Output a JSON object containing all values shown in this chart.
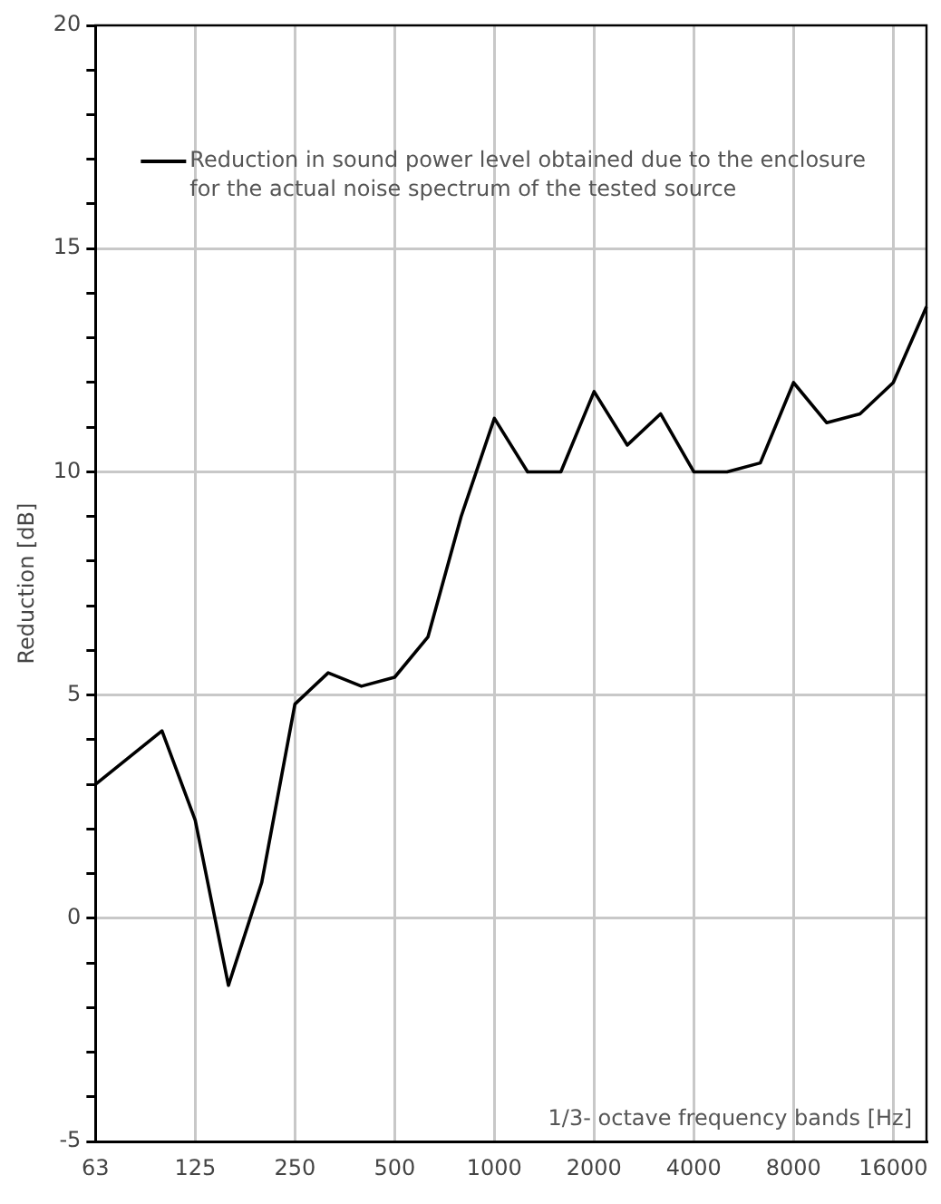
{
  "chart_data": {
    "type": "line",
    "xlabel": "1/3- octave frequency bands [Hz]",
    "ylabel": "Reduction [dB]",
    "categories": [
      "63",
      null,
      null,
      "125",
      null,
      null,
      "250",
      null,
      null,
      "500",
      null,
      null,
      "1000",
      null,
      null,
      "2000",
      null,
      null,
      "4000",
      null,
      null,
      "8000",
      null,
      null,
      "16000",
      null
    ],
    "series": [
      {
        "name": "Reduction in sound power level obtained due to the enclosure for the actual noise spectrum of the tested source",
        "color": "#000000",
        "values": [
          3.0,
          3.6,
          4.2,
          2.2,
          -1.5,
          0.8,
          4.8,
          5.5,
          5.2,
          5.4,
          6.3,
          9.0,
          11.2,
          10.0,
          10.0,
          11.8,
          10.6,
          11.3,
          10.0,
          10.0,
          10.2,
          12.0,
          11.1,
          11.3,
          12.0,
          13.7
        ]
      }
    ],
    "ylim": [
      -5,
      20
    ],
    "yticks": [
      -5,
      {
        "value": -4,
        "label": null
      },
      {
        "value": -3,
        "label": null
      },
      {
        "value": -2,
        "label": null
      },
      {
        "value": -1,
        "label": null
      },
      0,
      {
        "value": 1,
        "label": null
      },
      {
        "value": 2,
        "label": null
      },
      {
        "value": 3,
        "label": null
      },
      {
        "value": 4,
        "label": null
      },
      5,
      {
        "value": 6,
        "label": null
      },
      {
        "value": 7,
        "label": null
      },
      {
        "value": 8,
        "label": null
      },
      {
        "value": 9,
        "label": null
      },
      10,
      {
        "value": 11,
        "label": null
      },
      {
        "value": 12,
        "label": null
      },
      {
        "value": 13,
        "label": null
      },
      {
        "value": 14,
        "label": null
      },
      15,
      {
        "value": 16,
        "label": null
      },
      {
        "value": 17,
        "label": null
      },
      {
        "value": 18,
        "label": null
      },
      {
        "value": 19,
        "label": null
      },
      20
    ],
    "grid": true,
    "legend": "top left",
    "marker": "none",
    "line_style": "solid"
  }
}
